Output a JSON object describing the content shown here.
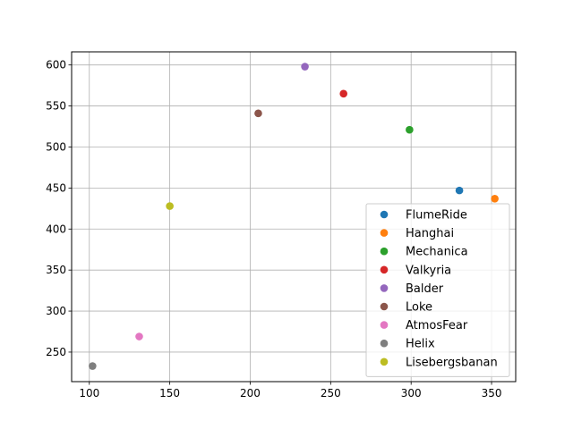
{
  "chart_data": {
    "type": "scatter",
    "title": "",
    "xlabel": "",
    "ylabel": "",
    "xlim": [
      89,
      365
    ],
    "ylim": [
      214,
      616
    ],
    "xticks": [
      100,
      150,
      200,
      250,
      300,
      350
    ],
    "yticks": [
      250,
      300,
      350,
      400,
      450,
      500,
      550,
      600
    ],
    "grid": true,
    "legend_position": "lower-right",
    "series": [
      {
        "name": "FlumeRide",
        "x": 330,
        "y": 447,
        "color": "#1f77b4"
      },
      {
        "name": "Hanghai",
        "x": 352,
        "y": 437,
        "color": "#ff7f0e"
      },
      {
        "name": "Mechanica",
        "x": 299,
        "y": 521,
        "color": "#2ca02c"
      },
      {
        "name": "Valkyria",
        "x": 258,
        "y": 565,
        "color": "#d62728"
      },
      {
        "name": "Balder",
        "x": 234,
        "y": 598,
        "color": "#9467bd"
      },
      {
        "name": "Loke",
        "x": 205,
        "y": 541,
        "color": "#8c564b"
      },
      {
        "name": "AtmosFear",
        "x": 131,
        "y": 269,
        "color": "#e377c2"
      },
      {
        "name": "Helix",
        "x": 102,
        "y": 233,
        "color": "#7f7f7f"
      },
      {
        "name": "Lisebergsbanan",
        "x": 150,
        "y": 428,
        "color": "#bcbd22"
      }
    ]
  }
}
